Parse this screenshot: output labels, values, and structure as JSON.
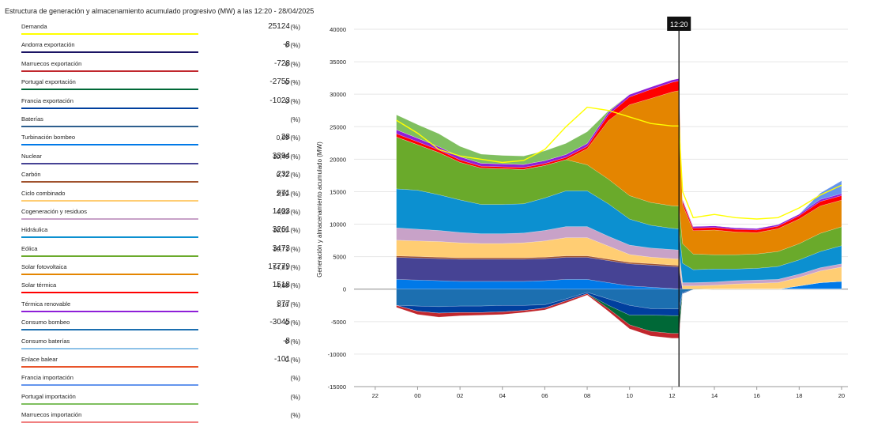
{
  "header": {
    "title": "Estructura de generación y almacenamiento acumulado progresivo (MW) a las 12:20 - 28/04/2025"
  },
  "legend": [
    {
      "label": "Demanda",
      "value": "25124",
      "pct": "- (%)",
      "color": "#ffff00"
    },
    {
      "label": "Andorra exportación",
      "value": "-8",
      "pct": "0 (%)",
      "color": "#1b1464"
    },
    {
      "label": "Marruecos exportación",
      "value": "-728",
      "pct": "0 (%)",
      "color": "#c1272d"
    },
    {
      "label": "Portugal exportación",
      "value": "-2755",
      "pct": "0 (%)",
      "color": "#006837"
    },
    {
      "label": "Francia exportación",
      "value": "-1023",
      "pct": "0 (%)",
      "color": "#003f9e"
    },
    {
      "label": "Baterías",
      "value": "",
      "pct": "(%)",
      "color": "#2e5f8e"
    },
    {
      "label": "Turbinación bombeo",
      "value": "28",
      "pct": "0,09 (%)",
      "color": "#0079e8"
    },
    {
      "label": "Nuclear",
      "value": "3394",
      "pct": "10,46 (%)",
      "color": "#464394"
    },
    {
      "label": "Carbón",
      "value": "232",
      "pct": "0,72 (%)",
      "color": "#a0522d"
    },
    {
      "label": "Ciclo combinado",
      "value": "971",
      "pct": "2,99 (%)",
      "color": "#ffcd73"
    },
    {
      "label": "Cogeneración y residuos",
      "value": "1403",
      "pct": "4,33 (%)",
      "color": "#c8a2c8"
    },
    {
      "label": "Hidráulica",
      "value": "3261",
      "pct": "10,05 (%)",
      "color": "#0c90d0"
    },
    {
      "label": "Eólica",
      "value": "3473",
      "pct": "10,71 (%)",
      "color": "#6aaa2b"
    },
    {
      "label": "Solar fotovoltaica",
      "value": "17779",
      "pct": "54,81 (%)",
      "color": "#e48500"
    },
    {
      "label": "Solar térmica",
      "value": "1518",
      "pct": "4,68 (%)",
      "color": "#ff0000"
    },
    {
      "label": "Térmica renovable",
      "value": "377",
      "pct": "1,16 (%)",
      "color": "#8f1fd8"
    },
    {
      "label": "Consumo bombeo",
      "value": "-3045",
      "pct": "0 (%)",
      "color": "#1c6fb0"
    },
    {
      "label": "Consumo baterías",
      "value": "-8",
      "pct": "0 (%)",
      "color": "#8ec2e8"
    },
    {
      "label": "Enlace balear",
      "value": "-101",
      "pct": "0 (%)",
      "color": "#e8542a"
    },
    {
      "label": "Francia importación",
      "value": "",
      "pct": "(%)",
      "color": "#6495ed"
    },
    {
      "label": "Portugal importación",
      "value": "",
      "pct": "(%)",
      "color": "#7fbf5f"
    },
    {
      "label": "Marruecos importación",
      "value": "",
      "pct": "(%)",
      "color": "#f08080"
    }
  ],
  "chart_data": {
    "type": "area",
    "stacked": true,
    "ylabel": "Generación y almacenamiento acumulado (MW)",
    "ylim": [
      -15000,
      40000
    ],
    "yticks": [
      40000,
      35000,
      30000,
      25000,
      20000,
      15000,
      10000,
      5000,
      0,
      -5000,
      -10000,
      -15000
    ],
    "xticks": [
      "22",
      "00",
      "02",
      "04",
      "06",
      "08",
      "10",
      "12",
      "14",
      "16",
      "18",
      "20"
    ],
    "x_hours": [
      -2,
      0,
      2,
      4,
      6,
      8,
      10,
      12,
      14,
      16,
      18,
      20
    ],
    "cursor": {
      "label": "12:20",
      "x_hour": 12.33
    },
    "x": [
      -1,
      0,
      1,
      2,
      3,
      4,
      5,
      6,
      7,
      8,
      9,
      10,
      11,
      12,
      12.33,
      12.5,
      13,
      14,
      15,
      16,
      17,
      18,
      19,
      20
    ],
    "series": [
      {
        "name": "Turbinación bombeo",
        "color": "#0079e8",
        "values": [
          1500,
          1400,
          1300,
          1200,
          1200,
          1200,
          1200,
          1300,
          1500,
          1500,
          1000,
          500,
          300,
          100,
          28,
          0,
          0,
          0,
          0,
          0,
          0,
          500,
          1000,
          1200
        ]
      },
      {
        "name": "Nuclear",
        "color": "#464394",
        "values": [
          3400,
          3400,
          3400,
          3400,
          3400,
          3400,
          3400,
          3400,
          3400,
          3400,
          3400,
          3400,
          3400,
          3394,
          3394,
          0,
          0,
          0,
          0,
          0,
          0,
          0,
          0,
          0
        ]
      },
      {
        "name": "Carbón",
        "color": "#a0522d",
        "values": [
          230,
          230,
          230,
          230,
          230,
          230,
          230,
          230,
          230,
          230,
          230,
          230,
          232,
          232,
          232,
          0,
          0,
          0,
          0,
          0,
          0,
          0,
          0,
          0
        ]
      },
      {
        "name": "Ciclo combinado",
        "color": "#ffcd73",
        "values": [
          2400,
          2400,
          2400,
          2300,
          2200,
          2200,
          2300,
          2500,
          2800,
          2800,
          2000,
          1200,
          1000,
          971,
          971,
          500,
          500,
          600,
          800,
          900,
          1000,
          1300,
          1800,
          2200
        ]
      },
      {
        "name": "Cogeneración y residuos",
        "color": "#c8a2c8",
        "values": [
          1900,
          1800,
          1700,
          1600,
          1500,
          1500,
          1500,
          1600,
          1700,
          1700,
          1500,
          1450,
          1403,
          1403,
          1403,
          500,
          500,
          500,
          500,
          500,
          500,
          500,
          500,
          500
        ]
      },
      {
        "name": "Hidráulica",
        "color": "#0c90d0",
        "values": [
          6000,
          6000,
          5500,
          5000,
          4500,
          4500,
          4500,
          5000,
          5500,
          5500,
          5000,
          4000,
          3500,
          3261,
          3261,
          3000,
          2000,
          2000,
          1800,
          1800,
          2000,
          2200,
          2500,
          2800
        ]
      },
      {
        "name": "Eólica",
        "color": "#6aaa2b",
        "values": [
          8000,
          7000,
          6500,
          5800,
          5600,
          5500,
          5300,
          5000,
          4800,
          4000,
          3800,
          3600,
          3500,
          3473,
          3473,
          3000,
          2400,
          2200,
          2200,
          2200,
          2300,
          2500,
          2800,
          2900
        ]
      },
      {
        "name": "Solar fotovoltaica",
        "color": "#e48500",
        "values": [
          0,
          0,
          0,
          0,
          0,
          0,
          0,
          0,
          0,
          2500,
          9000,
          14000,
          16000,
          17500,
          17779,
          6000,
          3600,
          3800,
          3500,
          3300,
          3500,
          3800,
          4200,
          4100
        ]
      },
      {
        "name": "Solar térmica",
        "color": "#ff0000",
        "values": [
          500,
          450,
          400,
          350,
          300,
          300,
          300,
          300,
          350,
          350,
          900,
          1200,
          1400,
          1500,
          1518,
          500,
          400,
          400,
          400,
          400,
          400,
          500,
          700,
          700
        ]
      },
      {
        "name": "Térmica renovable",
        "color": "#8f1fd8",
        "values": [
          600,
          550,
          500,
          500,
          450,
          450,
          450,
          450,
          450,
          450,
          400,
          390,
          380,
          377,
          377,
          300,
          250,
          250,
          250,
          250,
          250,
          250,
          300,
          300
        ]
      },
      {
        "name": "Francia importación",
        "color": "#6495ed",
        "values": [
          0,
          0,
          0,
          0,
          0,
          0,
          0,
          0,
          0,
          0,
          0,
          0,
          0,
          0,
          0,
          0,
          0,
          0,
          0,
          0,
          0,
          0,
          1000,
          2000
        ]
      },
      {
        "name": "Portugal importación",
        "color": "#7fbf5f",
        "values": [
          2300,
          2100,
          2000,
          1600,
          1400,
          1300,
          1300,
          1500,
          1700,
          1800,
          200,
          0,
          0,
          0,
          0,
          0,
          0,
          0,
          0,
          0,
          0,
          0,
          0,
          0
        ]
      }
    ],
    "negative_series": [
      {
        "name": "Consumo bombeo",
        "color": "#1c6fb0",
        "values": [
          -2500,
          -2600,
          -2700,
          -2600,
          -2600,
          -2500,
          -2500,
          -2400,
          -1500,
          -500,
          -1500,
          -2500,
          -3000,
          -3045,
          -3045,
          -500,
          -100,
          0,
          0,
          0,
          0,
          0,
          0,
          0
        ]
      },
      {
        "name": "Francia exportación",
        "color": "#003f9e",
        "values": [
          0,
          -800,
          -1000,
          -1000,
          -1000,
          -1000,
          -800,
          -500,
          -300,
          -200,
          -1000,
          -1500,
          -1000,
          -1023,
          -1023,
          -200,
          0,
          0,
          0,
          0,
          0,
          0,
          0,
          0
        ]
      },
      {
        "name": "Portugal exportación",
        "color": "#006837",
        "values": [
          0,
          0,
          0,
          0,
          0,
          0,
          0,
          0,
          0,
          0,
          -500,
          -1500,
          -2500,
          -2755,
          -2755,
          0,
          0,
          0,
          0,
          0,
          0,
          0,
          0,
          0
        ]
      },
      {
        "name": "Marruecos exportación",
        "color": "#c1272d",
        "values": [
          -300,
          -500,
          -600,
          -500,
          -400,
          -400,
          -300,
          -300,
          -300,
          -200,
          -400,
          -600,
          -700,
          -728,
          -728,
          0,
          0,
          0,
          0,
          0,
          0,
          0,
          0,
          0
        ]
      }
    ],
    "demand": {
      "name": "Demanda",
      "color": "#ffff00",
      "values": [
        26000,
        24000,
        21500,
        20500,
        20000,
        19500,
        19800,
        21500,
        25000,
        28000,
        27500,
        26500,
        25500,
        25124,
        25124,
        15000,
        11000,
        11500,
        11000,
        10800,
        11000,
        12500,
        14500,
        16000
      ]
    }
  }
}
